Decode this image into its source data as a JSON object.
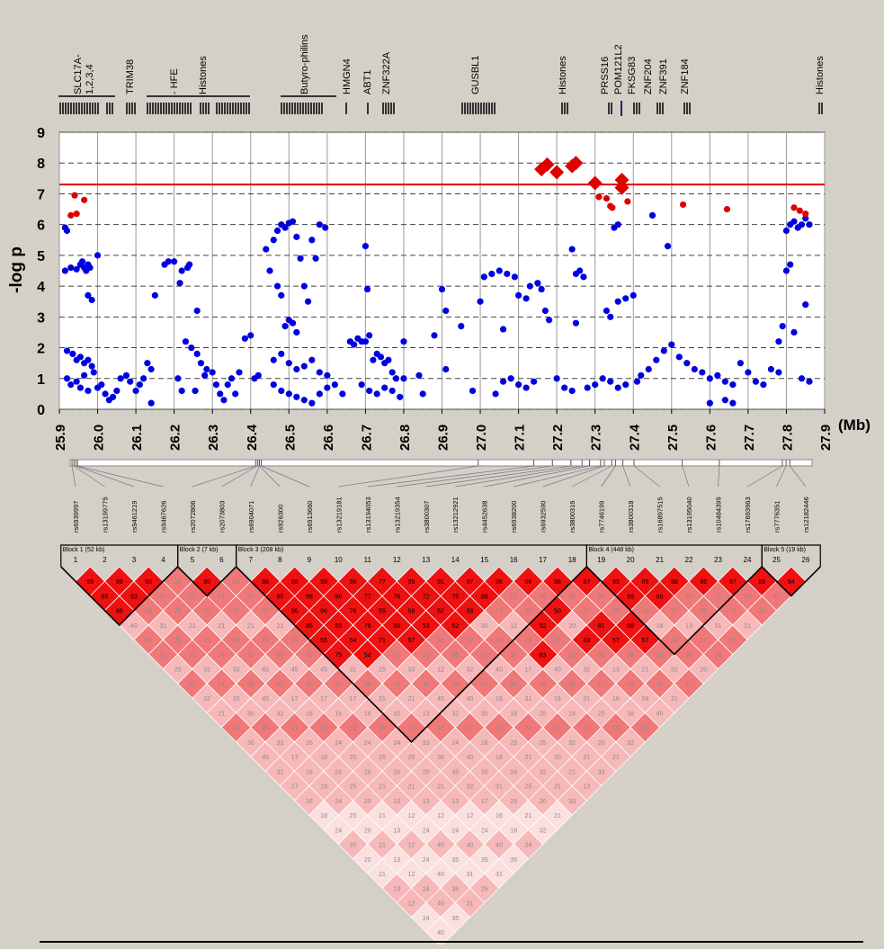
{
  "gene_track": {
    "labels": [
      "SLC17A-",
      "1,2,3,4",
      "TRIM38",
      "- HFE",
      "Histones",
      "Butyro-philins",
      "HMGN4",
      "ABT1",
      "ZNF322A",
      "GUSBL1",
      "Histones",
      "PRSS16",
      "POM121L2",
      "FKSG83",
      "ZNF204",
      "ZNF391",
      "ZNF184",
      "Histones"
    ]
  },
  "chart_data": {
    "type": "scatter",
    "title": "",
    "xlabel": "(Mb)",
    "ylabel": "-log p",
    "xlim": [
      25.9,
      27.9
    ],
    "ylim": [
      0,
      9
    ],
    "x_ticks": [
      "25.9",
      "26.0",
      "26.1",
      "26.2",
      "26.3",
      "26.4",
      "26.5",
      "26.6",
      "26.7",
      "26.8",
      "26.9",
      "27.0",
      "27.1",
      "27.2",
      "27.3",
      "27.4",
      "27.5",
      "27.6",
      "27.7",
      "27.8",
      "27.9"
    ],
    "y_ticks": [
      "0",
      "1",
      "2",
      "3",
      "4",
      "5",
      "6",
      "7",
      "8",
      "9"
    ],
    "grid": "vertical solid, horizontal dashed",
    "threshold": 7.3,
    "colors": {
      "threshold_line": "#e00000",
      "blue_points": "#0000e0",
      "red_points": "#e00000",
      "red_diamonds": "#e00000"
    },
    "series": [
      {
        "marker": "diamond",
        "color": "#e00000",
        "points": [
          [
            27.16,
            7.8
          ],
          [
            27.175,
            7.95
          ],
          [
            27.2,
            7.7
          ],
          [
            27.24,
            7.9
          ],
          [
            27.25,
            8.0
          ],
          [
            27.3,
            7.35
          ],
          [
            27.37,
            7.45
          ],
          [
            27.37,
            7.2
          ]
        ]
      },
      {
        "marker": "circle",
        "color": "#e00000",
        "points": [
          [
            25.93,
            6.3
          ],
          [
            25.945,
            6.35
          ],
          [
            25.94,
            6.95
          ],
          [
            25.965,
            6.8
          ],
          [
            27.31,
            6.9
          ],
          [
            27.33,
            6.85
          ],
          [
            27.34,
            6.6
          ],
          [
            27.345,
            6.55
          ],
          [
            27.385,
            6.75
          ],
          [
            27.53,
            6.65
          ],
          [
            27.645,
            6.5
          ],
          [
            27.82,
            6.55
          ],
          [
            27.835,
            6.45
          ],
          [
            27.85,
            6.35
          ]
        ]
      },
      {
        "marker": "circle",
        "color": "#0000e0",
        "points": [
          [
            25.915,
            5.9
          ],
          [
            25.92,
            5.8
          ],
          [
            25.915,
            4.5
          ],
          [
            25.93,
            4.6
          ],
          [
            25.945,
            4.55
          ],
          [
            25.955,
            4.7
          ],
          [
            25.965,
            4.6
          ],
          [
            25.97,
            4.5
          ],
          [
            25.96,
            4.8
          ],
          [
            25.975,
            4.7
          ],
          [
            25.98,
            4.6
          ],
          [
            25.975,
            3.7
          ],
          [
            25.985,
            3.55
          ],
          [
            26.0,
            5.0
          ],
          [
            25.92,
            1.9
          ],
          [
            25.935,
            1.8
          ],
          [
            25.945,
            1.6
          ],
          [
            25.955,
            1.7
          ],
          [
            25.965,
            1.5
          ],
          [
            25.975,
            1.6
          ],
          [
            25.985,
            1.4
          ],
          [
            25.92,
            1.0
          ],
          [
            25.93,
            0.8
          ],
          [
            25.945,
            0.9
          ],
          [
            25.955,
            0.7
          ],
          [
            25.965,
            1.1
          ],
          [
            25.975,
            0.6
          ],
          [
            25.99,
            1.2
          ],
          [
            26.0,
            0.7
          ],
          [
            26.01,
            0.8
          ],
          [
            26.02,
            0.5
          ],
          [
            26.03,
            0.3
          ],
          [
            26.04,
            0.4
          ],
          [
            26.05,
            0.6
          ],
          [
            26.06,
            1.0
          ],
          [
            26.075,
            1.1
          ],
          [
            26.085,
            0.9
          ],
          [
            26.1,
            0.6
          ],
          [
            26.11,
            0.8
          ],
          [
            26.12,
            1.0
          ],
          [
            26.13,
            1.5
          ],
          [
            26.14,
            1.3
          ],
          [
            26.14,
            0.2
          ],
          [
            26.15,
            3.7
          ],
          [
            26.175,
            4.7
          ],
          [
            26.185,
            4.8
          ],
          [
            26.2,
            4.8
          ],
          [
            26.215,
            4.1
          ],
          [
            26.22,
            4.5
          ],
          [
            26.235,
            4.6
          ],
          [
            26.24,
            4.7
          ],
          [
            26.23,
            2.2
          ],
          [
            26.245,
            2.0
          ],
          [
            26.26,
            1.8
          ],
          [
            26.27,
            1.5
          ],
          [
            26.285,
            1.3
          ],
          [
            26.21,
            1.0
          ],
          [
            26.22,
            0.6
          ],
          [
            26.255,
            0.6
          ],
          [
            26.26,
            3.2
          ],
          [
            26.28,
            1.1
          ],
          [
            26.3,
            1.2
          ],
          [
            26.31,
            0.8
          ],
          [
            26.32,
            0.5
          ],
          [
            26.33,
            0.3
          ],
          [
            26.34,
            0.8
          ],
          [
            26.35,
            1.0
          ],
          [
            26.36,
            0.5
          ],
          [
            26.37,
            1.2
          ],
          [
            26.385,
            2.3
          ],
          [
            26.4,
            2.4
          ],
          [
            26.41,
            1.0
          ],
          [
            26.42,
            1.1
          ],
          [
            26.44,
            5.2
          ],
          [
            26.45,
            4.5
          ],
          [
            26.46,
            5.5
          ],
          [
            26.47,
            4.0
          ],
          [
            26.48,
            3.7
          ],
          [
            26.47,
            5.8
          ],
          [
            26.48,
            6.0
          ],
          [
            26.49,
            5.9
          ],
          [
            26.5,
            6.05
          ],
          [
            26.51,
            6.1
          ],
          [
            26.52,
            5.6
          ],
          [
            26.53,
            4.9
          ],
          [
            26.54,
            4.0
          ],
          [
            26.55,
            3.5
          ],
          [
            26.56,
            5.5
          ],
          [
            26.57,
            4.9
          ],
          [
            26.58,
            6.0
          ],
          [
            26.595,
            5.9
          ],
          [
            26.49,
            2.7
          ],
          [
            26.5,
            2.9
          ],
          [
            26.51,
            2.8
          ],
          [
            26.52,
            2.5
          ],
          [
            26.46,
            1.6
          ],
          [
            26.48,
            1.8
          ],
          [
            26.5,
            1.5
          ],
          [
            26.52,
            1.3
          ],
          [
            26.54,
            1.4
          ],
          [
            26.56,
            1.6
          ],
          [
            26.58,
            1.2
          ],
          [
            26.6,
            1.1
          ],
          [
            26.46,
            0.8
          ],
          [
            26.48,
            0.6
          ],
          [
            26.5,
            0.5
          ],
          [
            26.52,
            0.4
          ],
          [
            26.54,
            0.3
          ],
          [
            26.56,
            0.2
          ],
          [
            26.58,
            0.5
          ],
          [
            26.6,
            0.7
          ],
          [
            26.62,
            0.8
          ],
          [
            26.64,
            0.5
          ],
          [
            26.66,
            2.2
          ],
          [
            26.67,
            2.1
          ],
          [
            26.68,
            2.3
          ],
          [
            26.69,
            2.2
          ],
          [
            26.7,
            2.2
          ],
          [
            26.71,
            2.4
          ],
          [
            26.72,
            1.6
          ],
          [
            26.73,
            1.8
          ],
          [
            26.74,
            1.7
          ],
          [
            26.75,
            1.5
          ],
          [
            26.76,
            1.6
          ],
          [
            26.77,
            1.2
          ],
          [
            26.78,
            1.0
          ],
          [
            26.7,
            5.3
          ],
          [
            26.705,
            3.9
          ],
          [
            26.69,
            0.8
          ],
          [
            26.71,
            0.6
          ],
          [
            26.73,
            0.5
          ],
          [
            26.75,
            0.7
          ],
          [
            26.77,
            0.6
          ],
          [
            26.79,
            0.4
          ],
          [
            26.8,
            2.2
          ],
          [
            26.8,
            1.0
          ],
          [
            26.84,
            1.1
          ],
          [
            26.85,
            0.5
          ],
          [
            26.88,
            2.4
          ],
          [
            26.9,
            3.9
          ],
          [
            26.91,
            3.2
          ],
          [
            26.91,
            1.3
          ],
          [
            26.95,
            2.7
          ],
          [
            26.98,
            0.6
          ],
          [
            27.0,
            3.5
          ],
          [
            27.01,
            4.3
          ],
          [
            27.03,
            4.4
          ],
          [
            27.05,
            4.5
          ],
          [
            27.07,
            4.4
          ],
          [
            27.09,
            4.3
          ],
          [
            27.1,
            3.7
          ],
          [
            27.12,
            3.6
          ],
          [
            27.13,
            4.0
          ],
          [
            27.15,
            4.1
          ],
          [
            27.16,
            3.9
          ],
          [
            27.17,
            3.2
          ],
          [
            27.18,
            2.9
          ],
          [
            27.06,
            2.6
          ],
          [
            27.04,
            0.5
          ],
          [
            27.06,
            0.9
          ],
          [
            27.08,
            1.0
          ],
          [
            27.1,
            0.8
          ],
          [
            27.12,
            0.7
          ],
          [
            27.14,
            0.9
          ],
          [
            27.2,
            1.0
          ],
          [
            27.22,
            0.7
          ],
          [
            27.24,
            0.6
          ],
          [
            27.25,
            4.4
          ],
          [
            27.26,
            4.5
          ],
          [
            27.27,
            4.3
          ],
          [
            27.24,
            5.2
          ],
          [
            27.25,
            2.8
          ],
          [
            27.28,
            0.7
          ],
          [
            27.3,
            0.8
          ],
          [
            27.32,
            1.0
          ],
          [
            27.34,
            0.9
          ],
          [
            27.36,
            0.7
          ],
          [
            27.38,
            0.8
          ],
          [
            27.33,
            3.2
          ],
          [
            27.34,
            3.0
          ],
          [
            27.36,
            3.5
          ],
          [
            27.38,
            3.6
          ],
          [
            27.4,
            3.7
          ],
          [
            27.35,
            5.9
          ],
          [
            27.36,
            6.0
          ],
          [
            27.41,
            0.9
          ],
          [
            27.42,
            1.1
          ],
          [
            27.44,
            1.3
          ],
          [
            27.46,
            1.6
          ],
          [
            27.48,
            1.9
          ],
          [
            27.5,
            2.1
          ],
          [
            27.52,
            1.7
          ],
          [
            27.54,
            1.5
          ],
          [
            27.56,
            1.3
          ],
          [
            27.58,
            1.2
          ],
          [
            27.6,
            1.0
          ],
          [
            27.62,
            1.1
          ],
          [
            27.64,
            0.9
          ],
          [
            27.66,
            0.8
          ],
          [
            27.68,
            1.5
          ],
          [
            27.7,
            1.2
          ],
          [
            27.72,
            0.9
          ],
          [
            27.74,
            0.8
          ],
          [
            27.45,
            6.3
          ],
          [
            27.49,
            5.3
          ],
          [
            27.6,
            0.2
          ],
          [
            27.64,
            0.3
          ],
          [
            27.66,
            0.2
          ],
          [
            27.76,
            1.3
          ],
          [
            27.78,
            1.2
          ],
          [
            27.78,
            2.2
          ],
          [
            27.79,
            2.7
          ],
          [
            27.8,
            4.5
          ],
          [
            27.81,
            4.7
          ],
          [
            27.8,
            5.8
          ],
          [
            27.81,
            6.0
          ],
          [
            27.82,
            6.1
          ],
          [
            27.83,
            5.9
          ],
          [
            27.84,
            6.0
          ],
          [
            27.85,
            6.2
          ],
          [
            27.86,
            6.0
          ],
          [
            27.85,
            3.4
          ],
          [
            27.82,
            2.5
          ],
          [
            27.84,
            1.0
          ],
          [
            27.86,
            0.9
          ]
        ]
      }
    ]
  },
  "ld": {
    "snps": [
      "rs6939997",
      "rs13199775",
      "rs9461219",
      "rs9467626",
      "rs2072806",
      "rs2073803",
      "rs6904071",
      "rs926300",
      "rs6913660",
      "rs13219181",
      "rs13194053",
      "rs13219354",
      "rs3800307",
      "rs13212921",
      "rs4452638",
      "rs6938200",
      "rs6932590",
      "rs3800316",
      "rs7746199",
      "rs3800318",
      "rs16897515",
      "rs13195040",
      "rs10484399",
      "rs17693963",
      "rs7776351",
      "rs12182446"
    ],
    "numbers": [
      "1",
      "2",
      "3",
      "4",
      "5",
      "6",
      "7",
      "8",
      "9",
      "10",
      "11",
      "12",
      "13",
      "14",
      "15",
      "16",
      "17",
      "18",
      "19",
      "20",
      "21",
      "22",
      "23",
      "24",
      "25",
      "26"
    ],
    "blocks": [
      "Block 1 (52 kb)",
      "Block 2 (7 kb)",
      "Block 3 (208 kb)",
      "Block 4 (448 kb)",
      "Block 5 (19 kb)"
    ],
    "colors": {
      "strong": "#ee1111",
      "mid": "#f07878",
      "light": "#f6b8b8",
      "pale": "#fbe0e0"
    },
    "cells": {
      "1-2": "99",
      "1-3": "85",
      "1-4": "99",
      "2-3": "99",
      "2-4": "93",
      "3-4": "93",
      "5-6": "99",
      "7-8": "96",
      "7-9": "95",
      "7-10": "96",
      "7-11": "86",
      "7-12": "55",
      "7-13": "75",
      "8-9": "98",
      "8-10": "98",
      "8-11": "96",
      "8-12": "55",
      "8-13": "54",
      "8-14": "54",
      "9-10": "99",
      "9-11": "96",
      "9-12": "76",
      "9-13": "78",
      "9-14": "71",
      "10-11": "96",
      "10-12": "77",
      "10-13": "55",
      "10-14": "56",
      "10-15": "57",
      "11-12": "77",
      "11-13": "76",
      "11-14": "58",
      "11-15": "53",
      "12-13": "95",
      "12-14": "72",
      "12-15": "52",
      "12-16": "52",
      "13-14": "91",
      "13-15": "75",
      "13-16": "58",
      "14-15": "97",
      "14-16": "88",
      "15-16": "98",
      "16-17": "98",
      "17-18": "98",
      "18-19": "87",
      "19-20": "93",
      "19-21": "89",
      "20-21": "89",
      "20-22": "96",
      "21-22": "88",
      "22-23": "96",
      "23-24": "97",
      "24-25": "89",
      "25-26": "94",
      "15-19": "52",
      "16-19": "50",
      "16-21": "83",
      "17-21": "81",
      "17-22": "57",
      "18-22": "58",
      "18-23": "57",
      "14-20": "63"
    },
    "default_labels": [
      "40",
      "35",
      "31",
      "25",
      "21",
      "32",
      "21",
      "33",
      "30",
      "45",
      "32",
      "17",
      "16",
      "18",
      "24",
      "25",
      "20",
      "21",
      "13",
      "12",
      "24"
    ]
  }
}
